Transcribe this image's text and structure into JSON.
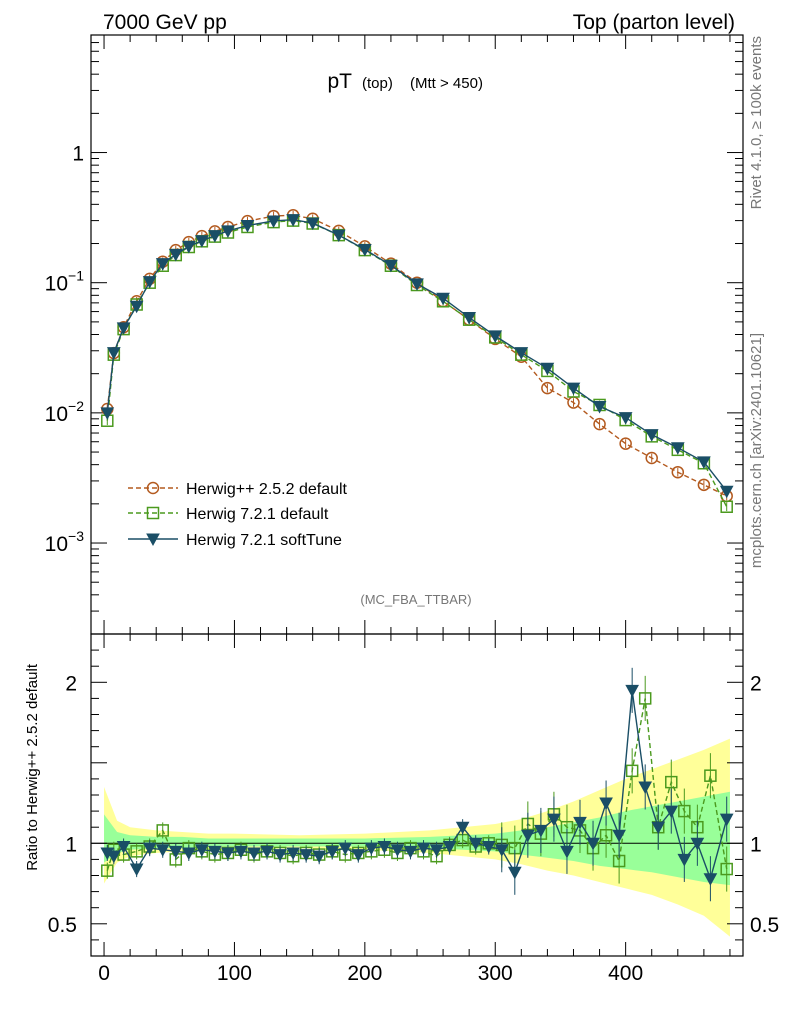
{
  "header": {
    "left": "7000 GeV pp",
    "right": "Top (parton level)"
  },
  "side_labels": {
    "rivet": "Rivet 4.1.0, ≥ 100k events",
    "mcplots": "mcplots.cern.ch [arXiv:2401.10621]"
  },
  "colors": {
    "herwigpp": "#b35a1f",
    "herwig721": "#4b9a1e",
    "softtune": "#1a4e66",
    "band_yellow": "#ffff99",
    "band_green": "#99ff99"
  },
  "chart_data": [
    {
      "type": "scatter",
      "title": "pT",
      "title_sub": "(top)",
      "title_cut": "(Mtt > 450)",
      "watermark": "(MC_FBA_TTBAR)",
      "yscale": "log",
      "ylim": [
        0.0002,
        8
      ],
      "xlim": [
        -10,
        490
      ],
      "ytick_labels": [
        {
          "value": 1,
          "base": "1",
          "exp": ""
        },
        {
          "value": 0.1,
          "base": "10",
          "exp": "−1"
        },
        {
          "value": 0.01,
          "base": "10",
          "exp": "−2"
        },
        {
          "value": 0.001,
          "base": "10",
          "exp": "−3"
        }
      ],
      "legend_position": "lower-left",
      "series": [
        {
          "key": "herwigpp",
          "name": "Herwig++ 2.5.2 default",
          "marker": "circle",
          "line": "dashed",
          "x": [
            2.5,
            7.5,
            15,
            25,
            35,
            45,
            55,
            65,
            75,
            85,
            95,
            110,
            130,
            145,
            160,
            180,
            200,
            220,
            240,
            260,
            280,
            300,
            320,
            340,
            360,
            380,
            400,
            420,
            440,
            460,
            477.5
          ],
          "y": [
            0.0107,
            0.0288,
            0.0455,
            0.072,
            0.107,
            0.145,
            0.178,
            0.205,
            0.228,
            0.248,
            0.268,
            0.297,
            0.325,
            0.33,
            0.31,
            0.25,
            0.19,
            0.14,
            0.1,
            0.072,
            0.052,
            0.037,
            0.027,
            0.0155,
            0.012,
            0.0082,
            0.0058,
            0.0045,
            0.0035,
            0.0028,
            0.0023
          ]
        },
        {
          "key": "herwig721",
          "name": "Herwig 7.2.1 default",
          "marker": "square",
          "line": "dashed",
          "x": [
            2.5,
            7.5,
            15,
            25,
            35,
            45,
            55,
            65,
            75,
            85,
            95,
            110,
            130,
            145,
            160,
            180,
            200,
            220,
            240,
            260,
            280,
            300,
            320,
            340,
            360,
            380,
            400,
            420,
            440,
            460,
            477.5
          ],
          "y": [
            0.0087,
            0.028,
            0.044,
            0.068,
            0.1,
            0.135,
            0.163,
            0.188,
            0.208,
            0.226,
            0.243,
            0.268,
            0.292,
            0.3,
            0.285,
            0.232,
            0.178,
            0.135,
            0.096,
            0.072,
            0.052,
            0.038,
            0.028,
            0.021,
            0.0146,
            0.0115,
            0.0088,
            0.0066,
            0.0052,
            0.0041,
            0.0019
          ]
        },
        {
          "key": "softtune",
          "name": "Herwig 7.2.1 softTune",
          "marker": "triangle-down",
          "line": "solid",
          "x": [
            2.5,
            7.5,
            15,
            25,
            35,
            45,
            55,
            65,
            75,
            85,
            95,
            110,
            130,
            145,
            160,
            180,
            200,
            220,
            240,
            260,
            280,
            300,
            320,
            340,
            360,
            380,
            400,
            420,
            440,
            460,
            477.5
          ],
          "y": [
            0.01,
            0.029,
            0.045,
            0.066,
            0.102,
            0.14,
            0.165,
            0.19,
            0.21,
            0.23,
            0.25,
            0.275,
            0.298,
            0.305,
            0.287,
            0.232,
            0.18,
            0.136,
            0.098,
            0.076,
            0.054,
            0.039,
            0.029,
            0.022,
            0.0155,
            0.0112,
            0.0092,
            0.0068,
            0.0054,
            0.0042,
            0.0025
          ]
        }
      ]
    },
    {
      "type": "scatter",
      "ylabel": "Ratio to Herwig++ 2.5.2 default",
      "ylim": [
        0.3,
        2.3
      ],
      "xlim": [
        -10,
        490
      ],
      "yticks": [
        0.5,
        1,
        2
      ],
      "ytick_labels": [
        "0.5",
        "1",
        "2"
      ],
      "xticks": [
        0,
        100,
        200,
        300,
        400
      ],
      "xtick_labels": [
        "0",
        "100",
        "200",
        "300",
        "400"
      ],
      "band": {
        "x": [
          0,
          10,
          20,
          40,
          60,
          80,
          100,
          150,
          200,
          250,
          300,
          320,
          340,
          360,
          380,
          400,
          420,
          440,
          460,
          480
        ],
        "yellow_lo": [
          0.75,
          0.88,
          0.92,
          0.94,
          0.95,
          0.96,
          0.96,
          0.97,
          0.96,
          0.94,
          0.9,
          0.87,
          0.83,
          0.8,
          0.76,
          0.72,
          0.68,
          0.62,
          0.55,
          0.42
        ],
        "yellow_hi": [
          1.35,
          1.14,
          1.1,
          1.08,
          1.07,
          1.06,
          1.06,
          1.05,
          1.06,
          1.08,
          1.12,
          1.15,
          1.2,
          1.26,
          1.33,
          1.4,
          1.46,
          1.52,
          1.58,
          1.65
        ],
        "green_lo": [
          0.88,
          0.94,
          0.96,
          0.97,
          0.97,
          0.98,
          0.98,
          0.98,
          0.98,
          0.97,
          0.95,
          0.93,
          0.91,
          0.89,
          0.86,
          0.84,
          0.82,
          0.79,
          0.76,
          0.74
        ],
        "green_hi": [
          1.18,
          1.07,
          1.05,
          1.04,
          1.04,
          1.03,
          1.03,
          1.03,
          1.03,
          1.04,
          1.06,
          1.08,
          1.1,
          1.13,
          1.16,
          1.2,
          1.23,
          1.26,
          1.29,
          1.32
        ]
      },
      "series": [
        {
          "key": "herwig721",
          "name": "Herwig 7.2.1 default",
          "x": [
            2.5,
            7.5,
            15,
            25,
            35,
            45,
            55,
            65,
            75,
            85,
            95,
            105,
            115,
            125,
            135,
            145,
            155,
            165,
            175,
            185,
            195,
            205,
            215,
            225,
            235,
            245,
            255,
            265,
            275,
            285,
            295,
            305,
            315,
            325,
            335,
            345,
            355,
            365,
            375,
            385,
            395,
            405,
            415,
            425,
            435,
            445,
            455,
            465,
            477.5
          ],
          "y": [
            0.83,
            0.96,
            0.93,
            0.95,
            0.98,
            1.08,
            0.9,
            0.97,
            0.95,
            0.93,
            0.94,
            0.96,
            0.93,
            0.95,
            0.94,
            0.92,
            0.94,
            0.93,
            0.95,
            0.93,
            0.94,
            0.95,
            0.96,
            0.94,
            0.97,
            0.95,
            0.92,
            0.99,
            1.02,
            0.98,
            1.0,
            0.99,
            0.97,
            1.12,
            1.06,
            1.18,
            1.1,
            1.08,
            0.97,
            1.05,
            0.89,
            1.45,
            1.9,
            1.1,
            1.38,
            1.2,
            1.1,
            1.42,
            0.84
          ]
        },
        {
          "key": "softtune",
          "name": "Herwig 7.2.1 softTune",
          "x": [
            2.5,
            7.5,
            15,
            25,
            35,
            45,
            55,
            65,
            75,
            85,
            95,
            105,
            115,
            125,
            135,
            145,
            155,
            165,
            175,
            185,
            195,
            205,
            215,
            225,
            235,
            245,
            255,
            265,
            275,
            285,
            295,
            305,
            315,
            325,
            335,
            345,
            355,
            365,
            375,
            385,
            395,
            405,
            415,
            425,
            435,
            445,
            455,
            465,
            477.5
          ],
          "y": [
            0.94,
            0.92,
            0.98,
            0.84,
            0.97,
            0.96,
            0.95,
            0.94,
            0.96,
            0.95,
            0.94,
            0.95,
            0.94,
            0.95,
            0.93,
            0.94,
            0.93,
            0.92,
            0.95,
            0.97,
            0.93,
            0.97,
            0.98,
            0.96,
            0.95,
            0.97,
            0.96,
            0.98,
            1.1,
            1.0,
            0.98,
            0.96,
            0.82,
            1.05,
            1.08,
            1.15,
            0.95,
            1.13,
            1.0,
            1.25,
            1.05,
            1.95,
            1.35,
            1.1,
            1.2,
            0.9,
            1.0,
            0.78,
            1.15
          ]
        }
      ]
    }
  ]
}
